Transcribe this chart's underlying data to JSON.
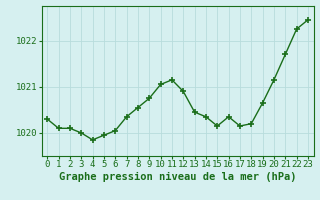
{
  "x": [
    0,
    1,
    2,
    3,
    4,
    5,
    6,
    7,
    8,
    9,
    10,
    11,
    12,
    13,
    14,
    15,
    16,
    17,
    18,
    19,
    20,
    21,
    22,
    23
  ],
  "y": [
    1020.3,
    1020.1,
    1020.1,
    1020.0,
    1019.85,
    1019.95,
    1020.05,
    1020.35,
    1020.55,
    1020.75,
    1021.05,
    1021.15,
    1020.9,
    1020.45,
    1020.35,
    1020.15,
    1020.35,
    1020.15,
    1020.2,
    1020.65,
    1021.15,
    1021.7,
    1022.25,
    1022.45
  ],
  "line_color": "#1a6e1a",
  "marker": "+",
  "marker_size": 4,
  "marker_lw": 1.2,
  "bg_color": "#d6f0f0",
  "grid_color": "#b8dcdc",
  "xlabel": "Graphe pression niveau de la mer (hPa)",
  "xlabel_fontsize": 7.5,
  "ylabel_ticks": [
    1020,
    1021,
    1022
  ],
  "ylim": [
    1019.5,
    1022.75
  ],
  "xlim": [
    -0.5,
    23.5
  ],
  "tick_fontsize": 6.5,
  "axis_color": "#1a6e1a",
  "linewidth": 1.0
}
